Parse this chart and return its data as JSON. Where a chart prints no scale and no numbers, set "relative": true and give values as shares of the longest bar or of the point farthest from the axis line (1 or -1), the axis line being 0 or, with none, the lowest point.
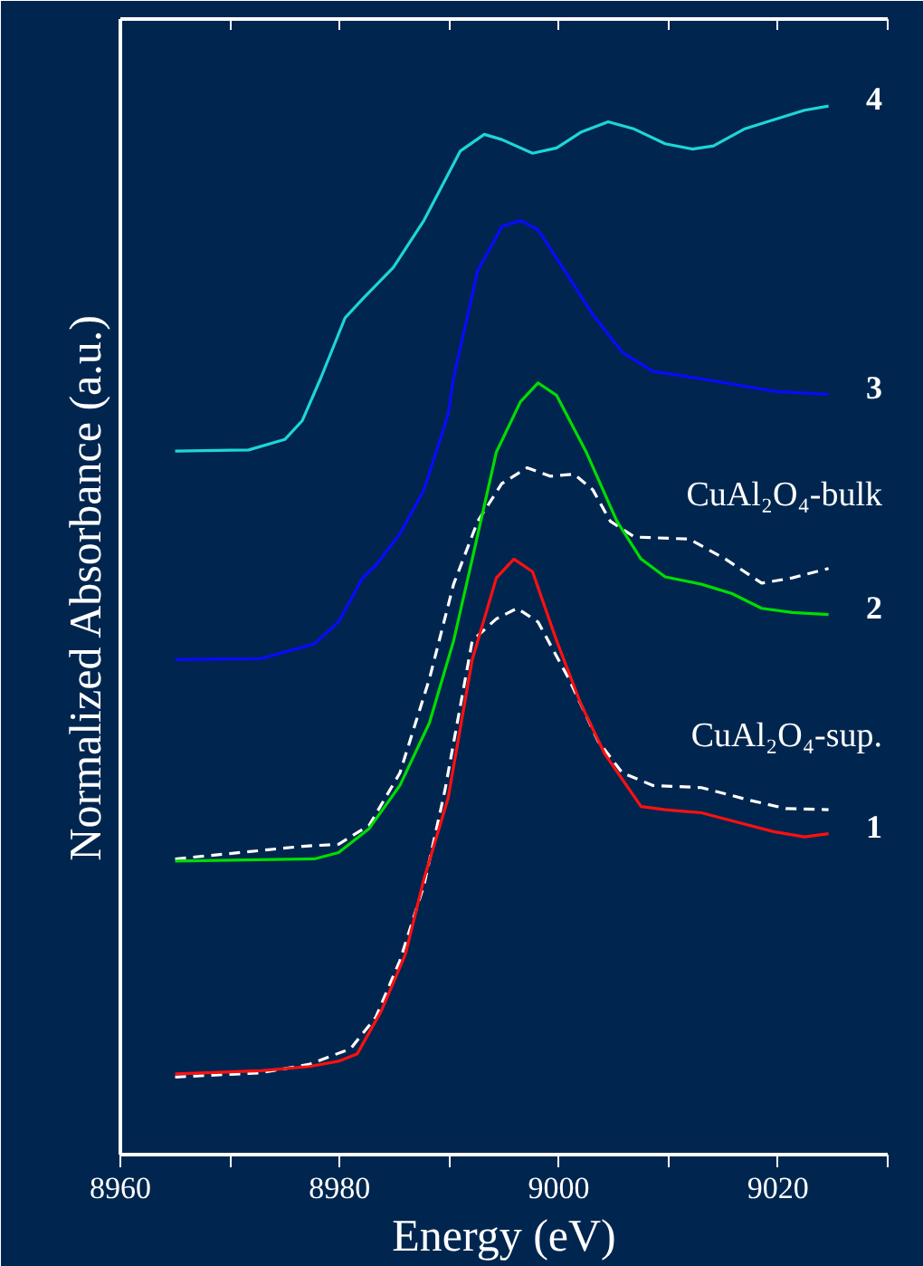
{
  "chart_data": {
    "type": "line",
    "xlabel": "Energy (eV)",
    "ylabel": "Normalized Absorbance (a.u.)",
    "relative": true,
    "tick_labels": "x",
    "xlim": [
      8960,
      9030
    ],
    "xticks": [
      8960,
      {
        "value": 8970,
        "label": null
      },
      8980,
      {
        "value": 8990,
        "label": null
      },
      9000,
      {
        "value": 9010,
        "label": null
      },
      9020,
      {
        "value": 9030,
        "label": null
      }
    ],
    "series": [
      {
        "name": "4",
        "color": "#1ed6d6",
        "line_style": "solid",
        "x": [
          8965.0,
          8971.7,
          8975.0,
          8976.6,
          8978.3,
          8980.5,
          8982.1,
          8984.9,
          8987.7,
          8991.0,
          8993.2,
          8994.8,
          8997.6,
          8999.8,
          9002.0,
          9004.5,
          9006.9,
          9009.7,
          9012.2,
          9014.1,
          9016.9,
          9019.6,
          9022.4,
          9024.6
        ],
        "values": [
          0.671,
          0.672,
          0.682,
          0.7,
          0.741,
          0.798,
          0.816,
          0.846,
          0.891,
          0.957,
          0.973,
          0.968,
          0.955,
          0.96,
          0.975,
          0.985,
          0.978,
          0.964,
          0.959,
          0.962,
          0.978,
          0.987,
          0.996,
          1.0
        ]
      },
      {
        "name": "3",
        "color": "#0a0aff",
        "line_style": "solid",
        "x": [
          8965.0,
          8972.8,
          8977.7,
          8979.9,
          8982.1,
          8983.3,
          8985.5,
          8987.7,
          8989.9,
          8990.4,
          8992.6,
          8994.8,
          8996.5,
          8998.1,
          9000.9,
          9003.1,
          9005.8,
          9008.6,
          9014.1,
          9019.6,
          9024.6
        ],
        "values": [
          0.472,
          0.473,
          0.487,
          0.508,
          0.55,
          0.562,
          0.592,
          0.634,
          0.706,
          0.741,
          0.843,
          0.885,
          0.891,
          0.882,
          0.837,
          0.801,
          0.765,
          0.747,
          0.738,
          0.728,
          0.725
        ]
      },
      {
        "name": "CuAl₂O₄-bulk",
        "color": "#ffffff",
        "line_style": "dashed",
        "x": [
          8965.0,
          8972.8,
          8976.6,
          8979.9,
          8982.7,
          8985.5,
          8988.2,
          8990.4,
          8992.6,
          8994.8,
          8997.1,
          8999.2,
          9001.4,
          9003.1,
          9004.7,
          9006.9,
          9011.9,
          9015.2,
          9018.5,
          9021.3,
          9024.6
        ],
        "values": [
          0.282,
          0.29,
          0.294,
          0.296,
          0.314,
          0.364,
          0.454,
          0.544,
          0.604,
          0.64,
          0.655,
          0.647,
          0.649,
          0.634,
          0.604,
          0.589,
          0.587,
          0.568,
          0.545,
          0.55,
          0.559
        ]
      },
      {
        "name": "2",
        "color": "#00dd00",
        "line_style": "solid",
        "x": [
          8965.0,
          8977.7,
          8979.9,
          8982.7,
          8985.5,
          8988.2,
          8990.4,
          8992.1,
          8994.3,
          8996.5,
          8998.1,
          8999.8,
          9002.5,
          9005.3,
          9007.5,
          9009.7,
          9013.0,
          9015.8,
          9018.5,
          9021.3,
          9024.6
        ],
        "values": [
          0.28,
          0.282,
          0.288,
          0.311,
          0.352,
          0.412,
          0.49,
          0.568,
          0.67,
          0.718,
          0.736,
          0.724,
          0.67,
          0.604,
          0.568,
          0.551,
          0.544,
          0.535,
          0.521,
          0.517,
          0.515
        ]
      },
      {
        "name": "CuAl₂O₄-sup.",
        "color": "#ffffff",
        "line_style": "dashed",
        "x": [
          8965.0,
          8972.8,
          8977.2,
          8981.0,
          8983.3,
          8985.5,
          8987.7,
          8989.6,
          8992.1,
          8994.3,
          8996.2,
          8998.1,
          9000.9,
          9003.6,
          9005.8,
          9008.6,
          9013.0,
          9017.4,
          9020.7,
          9024.6
        ],
        "values": [
          0.074,
          0.078,
          0.086,
          0.101,
          0.131,
          0.185,
          0.257,
          0.347,
          0.49,
          0.511,
          0.521,
          0.508,
          0.454,
          0.394,
          0.364,
          0.352,
          0.35,
          0.338,
          0.33,
          0.329
        ]
      },
      {
        "name": "1",
        "color": "#ff1010",
        "line_style": "solid",
        "x": [
          8965.0,
          8972.8,
          8977.2,
          8979.9,
          8981.6,
          8983.8,
          8986.0,
          8987.7,
          8989.9,
          8992.1,
          8994.3,
          8995.9,
          8997.6,
          8999.8,
          9002.0,
          9004.2,
          9007.5,
          9009.7,
          9013.0,
          9016.3,
          9019.6,
          9022.4,
          9024.6
        ],
        "values": [
          0.077,
          0.08,
          0.084,
          0.089,
          0.096,
          0.137,
          0.191,
          0.263,
          0.34,
          0.472,
          0.55,
          0.568,
          0.556,
          0.49,
          0.43,
          0.382,
          0.332,
          0.329,
          0.326,
          0.317,
          0.308,
          0.303,
          0.306
        ]
      }
    ]
  }
}
